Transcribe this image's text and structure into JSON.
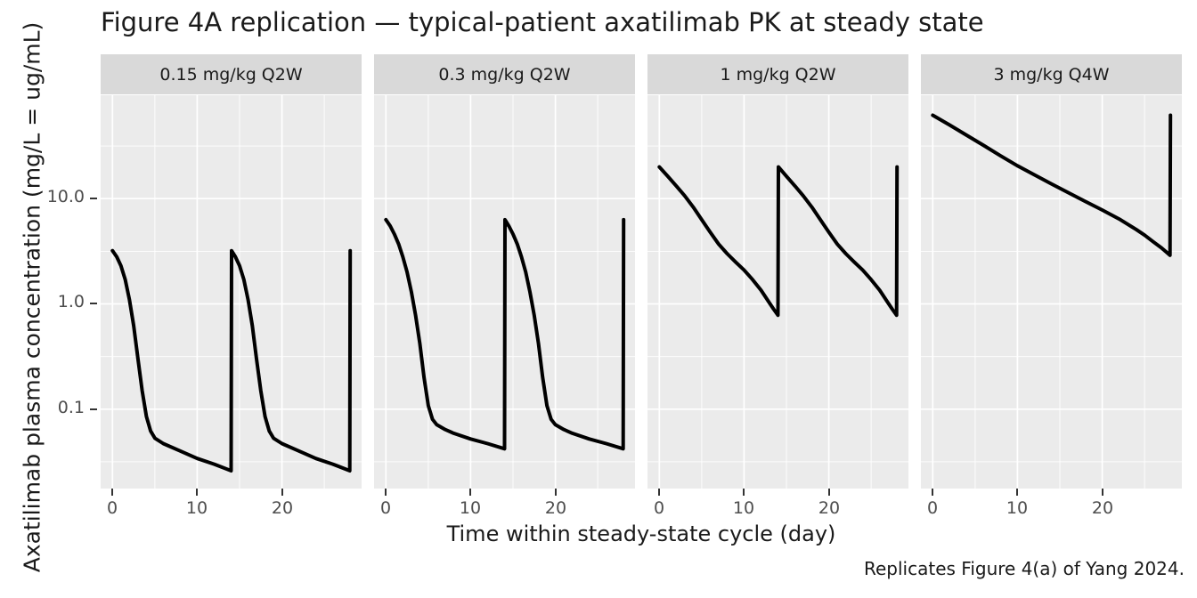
{
  "title": "Figure 4A replication — typical-patient axatilimab PK at steady state",
  "caption": "Replicates Figure 4(a) of Yang 2024.",
  "colors": {
    "panel_bg": "#EBEBEB",
    "strip_bg": "#D9D9D9",
    "grid": "#FFFFFF",
    "line": "#000000",
    "tick_label": "#4D4D4D",
    "tick_mark": "#333333",
    "text": "#1A1A1A",
    "background": "#FFFFFF"
  },
  "chart_data": {
    "type": "line",
    "title": "Figure 4A replication — typical-patient axatilimab PK at steady state",
    "xlabel": "Time within steady-state cycle (day)",
    "ylabel": "Axatilimab plasma concentration (mg/L = ug/mL)",
    "yscale": "log10",
    "grid": "on",
    "legend": "none",
    "xlim": [
      -1.4,
      29.4
    ],
    "ylim": [
      0.0176,
      96
    ],
    "x_ticks": [
      0,
      10,
      20
    ],
    "x_minor_ticks": [
      5,
      15,
      25
    ],
    "y_ticks": [
      10,
      1,
      0.1
    ],
    "y_tick_labels": [
      "10.0",
      "1.0",
      "0.1"
    ],
    "y_minor_ticks": [
      31.6,
      3.16,
      0.316,
      0.0316
    ],
    "line_width": 4,
    "panels": [
      {
        "label": "0.15 mg/kg Q2W",
        "dose_interval_days": 14,
        "peak": 3.2,
        "trough": 0.026,
        "points": [
          [
            0,
            3.2
          ],
          [
            0.5,
            2.8
          ],
          [
            1,
            2.3
          ],
          [
            1.5,
            1.7
          ],
          [
            2,
            1.1
          ],
          [
            2.5,
            0.62
          ],
          [
            3,
            0.3
          ],
          [
            3.5,
            0.15
          ],
          [
            4,
            0.085
          ],
          [
            4.5,
            0.062
          ],
          [
            5,
            0.053
          ],
          [
            6,
            0.047
          ],
          [
            8,
            0.04
          ],
          [
            10,
            0.034
          ],
          [
            12,
            0.03
          ],
          [
            14,
            0.026
          ],
          [
            14.05,
            3.2
          ],
          [
            14.5,
            2.8
          ],
          [
            15,
            2.3
          ],
          [
            15.5,
            1.7
          ],
          [
            16,
            1.1
          ],
          [
            16.5,
            0.62
          ],
          [
            17,
            0.3
          ],
          [
            17.5,
            0.15
          ],
          [
            18,
            0.085
          ],
          [
            18.5,
            0.062
          ],
          [
            19,
            0.053
          ],
          [
            20,
            0.047
          ],
          [
            22,
            0.04
          ],
          [
            24,
            0.034
          ],
          [
            26,
            0.03
          ],
          [
            28,
            0.026
          ],
          [
            28.05,
            3.2
          ]
        ]
      },
      {
        "label": "0.3 mg/kg Q2W",
        "dose_interval_days": 14,
        "peak": 6.3,
        "trough": 0.042,
        "points": [
          [
            0,
            6.3
          ],
          [
            0.5,
            5.5
          ],
          [
            1,
            4.6
          ],
          [
            1.5,
            3.7
          ],
          [
            2,
            2.8
          ],
          [
            2.5,
            2
          ],
          [
            3,
            1.3
          ],
          [
            3.5,
            0.78
          ],
          [
            4,
            0.42
          ],
          [
            4.5,
            0.2
          ],
          [
            5,
            0.108
          ],
          [
            5.5,
            0.08
          ],
          [
            6,
            0.071
          ],
          [
            7,
            0.064
          ],
          [
            8,
            0.059
          ],
          [
            10,
            0.052
          ],
          [
            12,
            0.047
          ],
          [
            14,
            0.042
          ],
          [
            14.05,
            6.3
          ],
          [
            14.5,
            5.5
          ],
          [
            15,
            4.6
          ],
          [
            15.5,
            3.7
          ],
          [
            16,
            2.8
          ],
          [
            16.5,
            2
          ],
          [
            17,
            1.3
          ],
          [
            17.5,
            0.78
          ],
          [
            18,
            0.42
          ],
          [
            18.5,
            0.2
          ],
          [
            19,
            0.108
          ],
          [
            19.5,
            0.08
          ],
          [
            20,
            0.071
          ],
          [
            21,
            0.064
          ],
          [
            22,
            0.059
          ],
          [
            24,
            0.052
          ],
          [
            26,
            0.047
          ],
          [
            28,
            0.042
          ],
          [
            28.05,
            6.3
          ]
        ]
      },
      {
        "label": "1 mg/kg Q2W",
        "dose_interval_days": 14,
        "peak": 20,
        "trough": 0.78,
        "points": [
          [
            0,
            20
          ],
          [
            1,
            16.3
          ],
          [
            2,
            13.2
          ],
          [
            3,
            10.6
          ],
          [
            4,
            8.3
          ],
          [
            5,
            6.3
          ],
          [
            6,
            4.8
          ],
          [
            7,
            3.7
          ],
          [
            8,
            3
          ],
          [
            9,
            2.5
          ],
          [
            10,
            2.1
          ],
          [
            11,
            1.7
          ],
          [
            12,
            1.35
          ],
          [
            13,
            1.02
          ],
          [
            13.5,
            0.89
          ],
          [
            14,
            0.78
          ],
          [
            14.05,
            20
          ],
          [
            15,
            16.3
          ],
          [
            16,
            13.2
          ],
          [
            17,
            10.6
          ],
          [
            18,
            8.3
          ],
          [
            19,
            6.3
          ],
          [
            20,
            4.8
          ],
          [
            21,
            3.7
          ],
          [
            22,
            3
          ],
          [
            23,
            2.5
          ],
          [
            24,
            2.1
          ],
          [
            25,
            1.7
          ],
          [
            26,
            1.35
          ],
          [
            27,
            1.02
          ],
          [
            27.5,
            0.89
          ],
          [
            28,
            0.78
          ],
          [
            28.05,
            20
          ]
        ]
      },
      {
        "label": "3 mg/kg Q4W",
        "dose_interval_days": 28,
        "peak": 62,
        "trough": 2.9,
        "points": [
          [
            0,
            62
          ],
          [
            2,
            50
          ],
          [
            4,
            40
          ],
          [
            6,
            32
          ],
          [
            8,
            25.5
          ],
          [
            10,
            20.5
          ],
          [
            12,
            16.8
          ],
          [
            14,
            13.8
          ],
          [
            16,
            11.4
          ],
          [
            18,
            9.4
          ],
          [
            20,
            7.8
          ],
          [
            22,
            6.4
          ],
          [
            24,
            5.1
          ],
          [
            25,
            4.5
          ],
          [
            26,
            3.9
          ],
          [
            27,
            3.4
          ],
          [
            28,
            2.9
          ],
          [
            28.05,
            62
          ]
        ]
      }
    ]
  }
}
